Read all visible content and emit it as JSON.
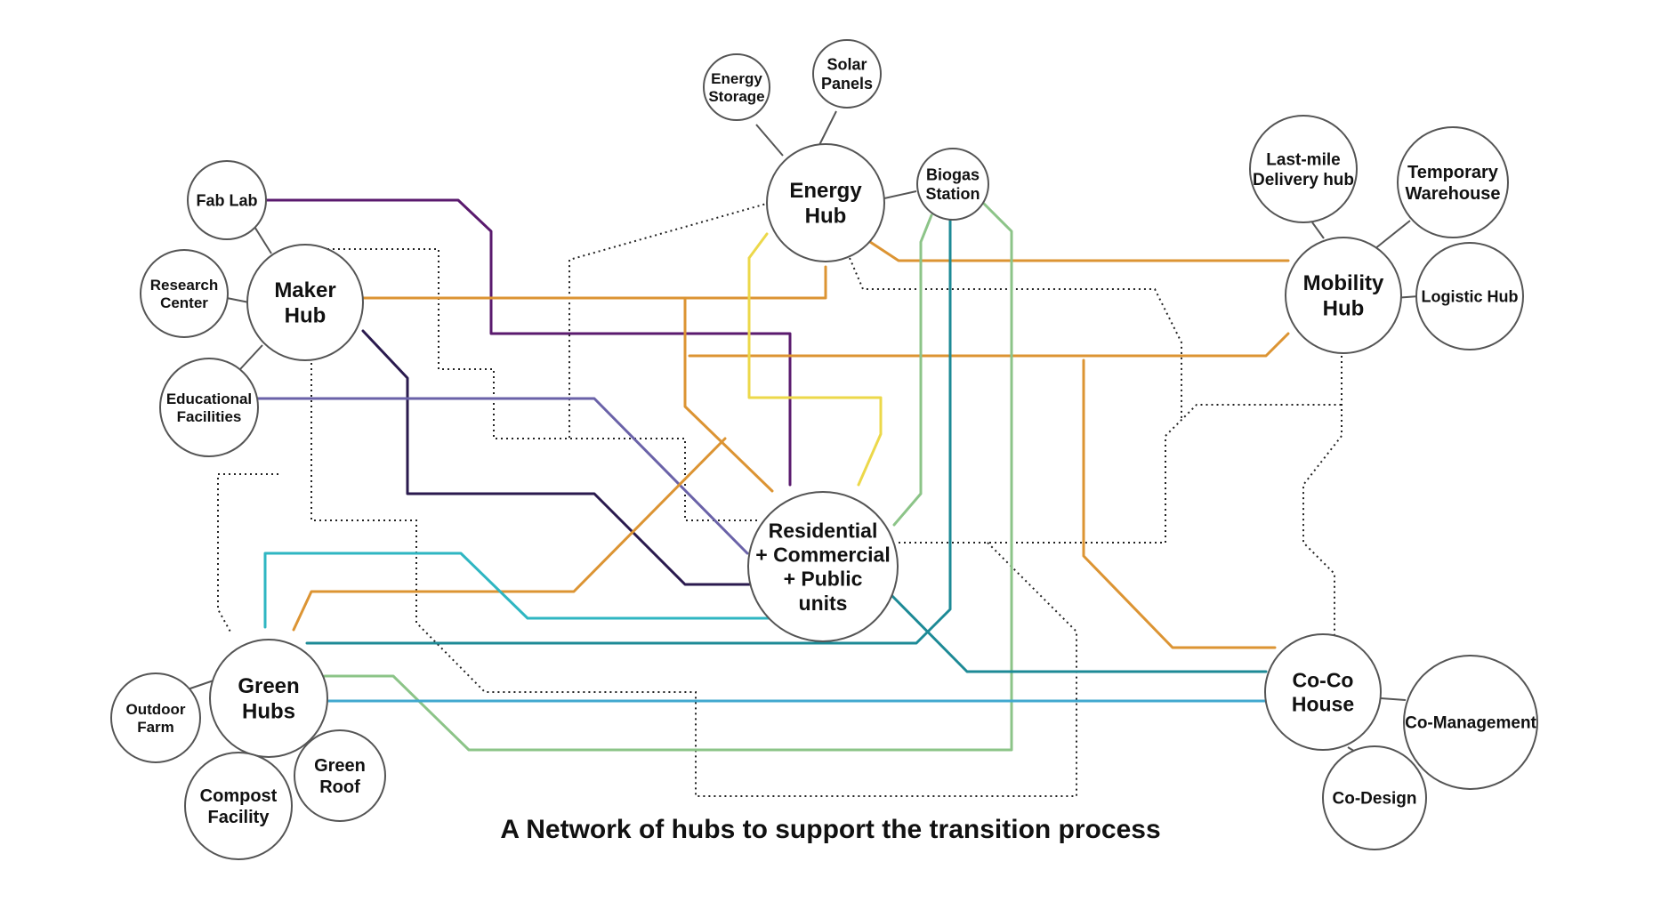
{
  "caption": "A Network of hubs to support the transition process",
  "colors": {
    "purple": "#5a1a6e",
    "dark_navy": "#2a1a4e",
    "lavender": "#6a62a8",
    "orange": "#dc9433",
    "yellow": "#ecd84a",
    "light_green": "#8cc488",
    "teal": "#1d8a96",
    "cyan": "#2fb6c2",
    "sky_blue": "#41a8cf",
    "dotted": "#222222"
  },
  "nodes": {
    "residential": {
      "lines": [
        "Residential",
        "+ Commercial",
        "+ Public",
        "units"
      ]
    },
    "energy_hub": {
      "lines": [
        "Energy",
        "Hub"
      ]
    },
    "energy_storage": {
      "lines": [
        "Energy",
        "Storage"
      ]
    },
    "solar_panels": {
      "lines": [
        "Solar",
        "Panels"
      ]
    },
    "biogas_station": {
      "lines": [
        "Biogas",
        "Station"
      ]
    },
    "maker_hub": {
      "lines": [
        "Maker",
        "Hub"
      ]
    },
    "fab_lab": {
      "lines": [
        "Fab Lab"
      ]
    },
    "research_center": {
      "lines": [
        "Research",
        "Center"
      ]
    },
    "educational_facilities": {
      "lines": [
        "Educational",
        "Facilities"
      ]
    },
    "mobility_hub": {
      "lines": [
        "Mobility",
        "Hub"
      ]
    },
    "last_mile": {
      "lines": [
        "Last-mile",
        "Delivery hub"
      ]
    },
    "temporary_warehouse": {
      "lines": [
        "Temporary",
        "Warehouse"
      ]
    },
    "logistic_hub": {
      "lines": [
        "Logistic Hub"
      ]
    },
    "green_hubs": {
      "lines": [
        "Green",
        "Hubs"
      ]
    },
    "outdoor_farm": {
      "lines": [
        "Outdoor",
        "Farm"
      ]
    },
    "compost_facility": {
      "lines": [
        "Compost",
        "Facility"
      ]
    },
    "green_roof": {
      "lines": [
        "Green",
        "Roof"
      ]
    },
    "coco_house": {
      "lines": [
        "Co-Co",
        "House"
      ]
    },
    "co_management": {
      "lines": [
        "Co-Management"
      ]
    },
    "co_design": {
      "lines": [
        "Co-Design"
      ]
    }
  }
}
